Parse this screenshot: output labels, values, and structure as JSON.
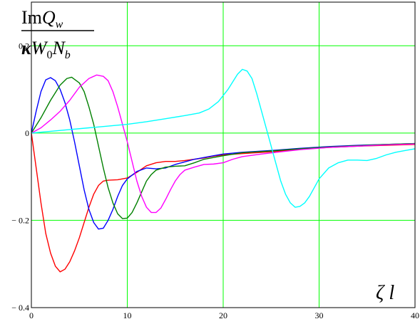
{
  "chart_data": {
    "type": "line",
    "xlabel": "ζ l",
    "ylabel": {
      "numerator_prefix": "Im",
      "numerator_var": "Q",
      "numerator_sub": "w",
      "denominator_kappa": "κ",
      "denominator_W": "W",
      "denominator_W_sub": "0",
      "denominator_N": "N",
      "denominator_N_sub": "b"
    },
    "xlim": [
      0,
      40
    ],
    "ylim": [
      -0.4,
      0.3
    ],
    "grid": true,
    "grid_color": "#00ff00",
    "x_ticks": [
      {
        "value": 0,
        "label": "0"
      },
      {
        "value": 10,
        "label": "10"
      },
      {
        "value": 20,
        "label": "20"
      },
      {
        "value": 30,
        "label": "30"
      },
      {
        "value": 40,
        "label": "40"
      }
    ],
    "y_ticks": [
      {
        "value": 0.2,
        "label": "0.2"
      },
      {
        "value": 0,
        "label": "0"
      },
      {
        "value": -0.2,
        "label": "− 0.2"
      },
      {
        "value": -0.4,
        "label": "− 0.4"
      }
    ],
    "series": [
      {
        "color": "#ff0000",
        "points": [
          [
            0,
            0
          ],
          [
            0.5,
            -0.08
          ],
          [
            1,
            -0.16
          ],
          [
            1.5,
            -0.23
          ],
          [
            2,
            -0.275
          ],
          [
            2.5,
            -0.305
          ],
          [
            3,
            -0.318
          ],
          [
            3.5,
            -0.312
          ],
          [
            4,
            -0.295
          ],
          [
            4.5,
            -0.27
          ],
          [
            5,
            -0.24
          ],
          [
            5.5,
            -0.205
          ],
          [
            6,
            -0.17
          ],
          [
            6.5,
            -0.14
          ],
          [
            7,
            -0.12
          ],
          [
            7.5,
            -0.11
          ],
          [
            8,
            -0.108
          ],
          [
            9,
            -0.107
          ],
          [
            10,
            -0.103
          ],
          [
            11,
            -0.09
          ],
          [
            12,
            -0.075
          ],
          [
            13,
            -0.068
          ],
          [
            14,
            -0.065
          ],
          [
            15,
            -0.065
          ],
          [
            16,
            -0.063
          ],
          [
            17,
            -0.06
          ],
          [
            18,
            -0.057
          ],
          [
            19,
            -0.053
          ],
          [
            20,
            -0.05
          ],
          [
            22,
            -0.047
          ],
          [
            25,
            -0.043
          ],
          [
            28,
            -0.037
          ],
          [
            31,
            -0.033
          ],
          [
            34,
            -0.03
          ],
          [
            37,
            -0.028
          ],
          [
            40,
            -0.026
          ]
        ]
      },
      {
        "color": "#0000ff",
        "points": [
          [
            0,
            0
          ],
          [
            0.5,
            0.05
          ],
          [
            1,
            0.095
          ],
          [
            1.5,
            0.122
          ],
          [
            2,
            0.127
          ],
          [
            2.5,
            0.12
          ],
          [
            3,
            0.1
          ],
          [
            3.5,
            0.07
          ],
          [
            4,
            0.03
          ],
          [
            4.5,
            -0.02
          ],
          [
            5,
            -0.075
          ],
          [
            5.5,
            -0.13
          ],
          [
            6,
            -0.175
          ],
          [
            6.5,
            -0.205
          ],
          [
            7,
            -0.22
          ],
          [
            7.5,
            -0.218
          ],
          [
            8,
            -0.2
          ],
          [
            8.5,
            -0.175
          ],
          [
            9,
            -0.145
          ],
          [
            9.5,
            -0.12
          ],
          [
            10,
            -0.105
          ],
          [
            11,
            -0.088
          ],
          [
            12,
            -0.08
          ],
          [
            13,
            -0.082
          ],
          [
            14,
            -0.08
          ],
          [
            15,
            -0.072
          ],
          [
            16,
            -0.066
          ],
          [
            17,
            -0.06
          ],
          [
            18,
            -0.056
          ],
          [
            19,
            -0.052
          ],
          [
            20,
            -0.048
          ],
          [
            22,
            -0.044
          ],
          [
            25,
            -0.04
          ],
          [
            28,
            -0.035
          ],
          [
            31,
            -0.031
          ],
          [
            34,
            -0.028
          ],
          [
            37,
            -0.026
          ],
          [
            40,
            -0.024
          ]
        ]
      },
      {
        "color": "#008000",
        "points": [
          [
            0,
            0
          ],
          [
            1,
            0.035
          ],
          [
            2,
            0.075
          ],
          [
            3,
            0.11
          ],
          [
            3.7,
            0.125
          ],
          [
            4.2,
            0.128
          ],
          [
            5,
            0.115
          ],
          [
            5.5,
            0.095
          ],
          [
            6,
            0.06
          ],
          [
            6.5,
            0.02
          ],
          [
            7,
            -0.03
          ],
          [
            7.5,
            -0.08
          ],
          [
            8,
            -0.125
          ],
          [
            8.5,
            -0.16
          ],
          [
            9,
            -0.185
          ],
          [
            9.5,
            -0.196
          ],
          [
            10,
            -0.195
          ],
          [
            10.5,
            -0.182
          ],
          [
            11,
            -0.16
          ],
          [
            11.5,
            -0.135
          ],
          [
            12,
            -0.11
          ],
          [
            12.5,
            -0.095
          ],
          [
            13,
            -0.085
          ],
          [
            14,
            -0.078
          ],
          [
            15,
            -0.076
          ],
          [
            16,
            -0.075
          ],
          [
            17,
            -0.068
          ],
          [
            18,
            -0.06
          ],
          [
            20,
            -0.052
          ],
          [
            22,
            -0.045
          ],
          [
            25,
            -0.041
          ],
          [
            28,
            -0.036
          ],
          [
            31,
            -0.032
          ],
          [
            34,
            -0.029
          ],
          [
            37,
            -0.026
          ],
          [
            40,
            -0.024
          ]
        ]
      },
      {
        "color": "#ff00ff",
        "points": [
          [
            0,
            0
          ],
          [
            1,
            0.012
          ],
          [
            2,
            0.03
          ],
          [
            3,
            0.05
          ],
          [
            4,
            0.075
          ],
          [
            5,
            0.105
          ],
          [
            6,
            0.125
          ],
          [
            6.8,
            0.133
          ],
          [
            7.5,
            0.13
          ],
          [
            8,
            0.12
          ],
          [
            8.5,
            0.095
          ],
          [
            9,
            0.06
          ],
          [
            9.5,
            0.02
          ],
          [
            10,
            -0.02
          ],
          [
            10.5,
            -0.065
          ],
          [
            11,
            -0.11
          ],
          [
            11.5,
            -0.145
          ],
          [
            12,
            -0.17
          ],
          [
            12.5,
            -0.182
          ],
          [
            13,
            -0.182
          ],
          [
            13.5,
            -0.172
          ],
          [
            14,
            -0.152
          ],
          [
            14.5,
            -0.13
          ],
          [
            15,
            -0.11
          ],
          [
            15.5,
            -0.095
          ],
          [
            16,
            -0.085
          ],
          [
            17,
            -0.078
          ],
          [
            18,
            -0.072
          ],
          [
            19,
            -0.071
          ],
          [
            20,
            -0.068
          ],
          [
            21,
            -0.06
          ],
          [
            22,
            -0.054
          ],
          [
            24,
            -0.048
          ],
          [
            26,
            -0.043
          ],
          [
            28,
            -0.038
          ],
          [
            31,
            -0.033
          ],
          [
            34,
            -0.03
          ],
          [
            37,
            -0.027
          ],
          [
            40,
            -0.025
          ]
        ]
      },
      {
        "color": "#00ffff",
        "points": [
          [
            0,
            0
          ],
          [
            2,
            0.004
          ],
          [
            4,
            0.008
          ],
          [
            6,
            0.012
          ],
          [
            8,
            0.016
          ],
          [
            10,
            0.02
          ],
          [
            12,
            0.026
          ],
          [
            14,
            0.033
          ],
          [
            16,
            0.04
          ],
          [
            17.5,
            0.046
          ],
          [
            18.5,
            0.055
          ],
          [
            19.5,
            0.072
          ],
          [
            20.5,
            0.1
          ],
          [
            21.5,
            0.135
          ],
          [
            22,
            0.146
          ],
          [
            22.5,
            0.142
          ],
          [
            23,
            0.125
          ],
          [
            23.5,
            0.09
          ],
          [
            24,
            0.05
          ],
          [
            24.5,
            0.01
          ],
          [
            25,
            -0.03
          ],
          [
            25.5,
            -0.07
          ],
          [
            26,
            -0.11
          ],
          [
            26.5,
            -0.14
          ],
          [
            27,
            -0.16
          ],
          [
            27.5,
            -0.17
          ],
          [
            28,
            -0.168
          ],
          [
            28.5,
            -0.16
          ],
          [
            29,
            -0.145
          ],
          [
            29.5,
            -0.125
          ],
          [
            30,
            -0.105
          ],
          [
            31,
            -0.08
          ],
          [
            32,
            -0.068
          ],
          [
            33,
            -0.062
          ],
          [
            34,
            -0.062
          ],
          [
            35,
            -0.063
          ],
          [
            36,
            -0.058
          ],
          [
            37,
            -0.05
          ],
          [
            38,
            -0.044
          ],
          [
            39,
            -0.04
          ],
          [
            40,
            -0.036
          ]
        ]
      }
    ]
  }
}
